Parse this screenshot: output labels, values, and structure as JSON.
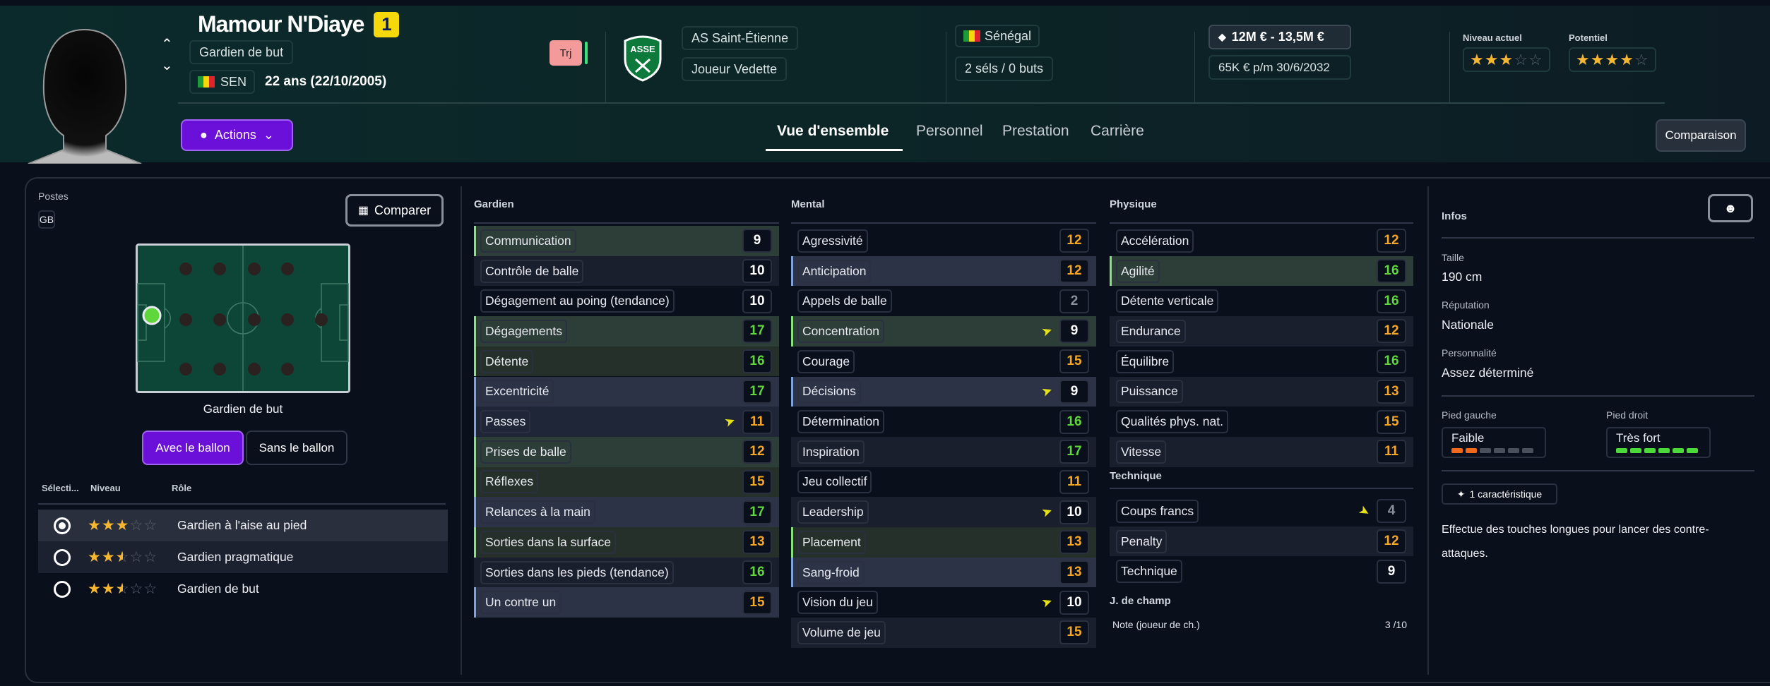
{
  "header": {
    "player_name": "Mamour N'Diaye",
    "squad_number": "1",
    "position": "Gardien de but",
    "nation_code": "SEN",
    "age": "22 ans (22/10/2005)",
    "transfer_badge": "Trj",
    "club": "AS Saint-Étienne",
    "club_logo_text": "ASSE",
    "squad_status": "Joueur Vedette",
    "nationality": "Sénégal",
    "caps": "2 séls / 0 buts",
    "value": "12M € - 13,5M €",
    "wage": "65K € p/m",
    "contract_end": "30/6/2032",
    "current_ability_label": "Niveau actuel",
    "current_ability_stars": 3,
    "potential_label": "Potentiel",
    "potential_stars": 4,
    "actions_label": "Actions",
    "comparison_label": "Comparaison",
    "tabs": [
      {
        "label": "Vue d'ensemble",
        "active": true
      },
      {
        "label": "Personnel",
        "active": false
      },
      {
        "label": "Prestation",
        "active": false
      },
      {
        "label": "Carrière",
        "active": false
      }
    ]
  },
  "positions": {
    "label": "Postes",
    "badge": "GB",
    "compare_label": "Comparer",
    "pitch_caption": "Gardien de but",
    "toggle": [
      "Avec le ballon",
      "Sans le ballon"
    ],
    "toggle_active": 0,
    "columns": [
      "Sélecti...",
      "Niveau",
      "Rôle"
    ],
    "roles": [
      {
        "name": "Gardien à l'aise au pied",
        "stars": 3,
        "selected": true
      },
      {
        "name": "Gardien pragmatique",
        "stars": 2.5,
        "selected": false
      },
      {
        "name": "Gardien de but",
        "stars": 2.5,
        "selected": false
      }
    ]
  },
  "attributes": {
    "gardien": {
      "title": "Gardien",
      "rows": [
        {
          "label": "Communication",
          "value": "9",
          "bg": "gl"
        },
        {
          "label": "Contrôle de balle",
          "value": "10",
          "bg": "s"
        },
        {
          "label": "Dégagement au poing (tendance)",
          "value": "10",
          "bg": ""
        },
        {
          "label": "Dégagements",
          "value": "17",
          "bg": "gl"
        },
        {
          "label": "Détente",
          "value": "16",
          "bg": "gd"
        },
        {
          "label": "Excentricité",
          "value": "17",
          "bg": "bl"
        },
        {
          "label": "Passes",
          "value": "11",
          "bg": "bd",
          "arrow": "up"
        },
        {
          "label": "Prises de balle",
          "value": "12",
          "bg": "gl"
        },
        {
          "label": "Réflexes",
          "value": "15",
          "bg": "gd"
        },
        {
          "label": "Relances à la main",
          "value": "17",
          "bg": "bl"
        },
        {
          "label": "Sorties dans la surface",
          "value": "13",
          "bg": "gd"
        },
        {
          "label": "Sorties dans les pieds (tendance)",
          "value": "16",
          "bg": "s"
        },
        {
          "label": "Un contre un",
          "value": "15",
          "bg": "bl"
        }
      ]
    },
    "mental": {
      "title": "Mental",
      "rows": [
        {
          "label": "Agressivité",
          "value": "12",
          "bg": ""
        },
        {
          "label": "Anticipation",
          "value": "12",
          "bg": "bl"
        },
        {
          "label": "Appels de balle",
          "value": "2",
          "bg": ""
        },
        {
          "label": "Concentration",
          "value": "9",
          "bg": "gl",
          "arrow": "up"
        },
        {
          "label": "Courage",
          "value": "15",
          "bg": ""
        },
        {
          "label": "Décisions",
          "value": "9",
          "bg": "bl",
          "arrow": "up"
        },
        {
          "label": "Détermination",
          "value": "16",
          "bg": ""
        },
        {
          "label": "Inspiration",
          "value": "17",
          "bg": "s"
        },
        {
          "label": "Jeu collectif",
          "value": "11",
          "bg": ""
        },
        {
          "label": "Leadership",
          "value": "10",
          "bg": "s",
          "arrow": "up"
        },
        {
          "label": "Placement",
          "value": "13",
          "bg": "gd"
        },
        {
          "label": "Sang-froid",
          "value": "13",
          "bg": "bl"
        },
        {
          "label": "Vision du jeu",
          "value": "10",
          "bg": "",
          "arrow": "up"
        },
        {
          "label": "Volume de jeu",
          "value": "15",
          "bg": "s"
        }
      ]
    },
    "physique": {
      "title": "Physique",
      "rows": [
        {
          "label": "Accélération",
          "value": "12",
          "bg": ""
        },
        {
          "label": "Agilité",
          "value": "16",
          "bg": "gl"
        },
        {
          "label": "Détente verticale",
          "value": "16",
          "bg": ""
        },
        {
          "label": "Endurance",
          "value": "12",
          "bg": "s"
        },
        {
          "label": "Équilibre",
          "value": "16",
          "bg": ""
        },
        {
          "label": "Puissance",
          "value": "13",
          "bg": "s"
        },
        {
          "label": "Qualités phys. nat.",
          "value": "15",
          "bg": ""
        },
        {
          "label": "Vitesse",
          "value": "11",
          "bg": "s"
        }
      ]
    },
    "technique": {
      "title": "Technique",
      "rows": [
        {
          "label": "Coups francs",
          "value": "4",
          "bg": "",
          "arrow": "down"
        },
        {
          "label": "Penalty",
          "value": "12",
          "bg": "s"
        },
        {
          "label": "Technique",
          "value": "9",
          "bg": ""
        }
      ]
    },
    "outfield": {
      "title": "J. de champ",
      "label": "Note (joueur de ch.)",
      "value": "3 /10"
    }
  },
  "infos": {
    "title": "Infos",
    "height_label": "Taille",
    "height": "190 cm",
    "reputation_label": "Réputation",
    "reputation": "Nationale",
    "personality_label": "Personnalité",
    "personality": "Assez déterminé",
    "left_foot_label": "Pied gauche",
    "left_foot": "Faible",
    "left_foot_level": 2,
    "right_foot_label": "Pied droit",
    "right_foot": "Très fort",
    "right_foot_level": 6,
    "traits_label": "1 caractéristique",
    "trait_description": "Effectue des touches longues pour lancer des contre-attaques."
  },
  "colors": {
    "accent": "#6b10d8",
    "high": "#5fd63c",
    "mid": "#f5a623",
    "low": "#8a909c",
    "star": "#f5b731"
  }
}
